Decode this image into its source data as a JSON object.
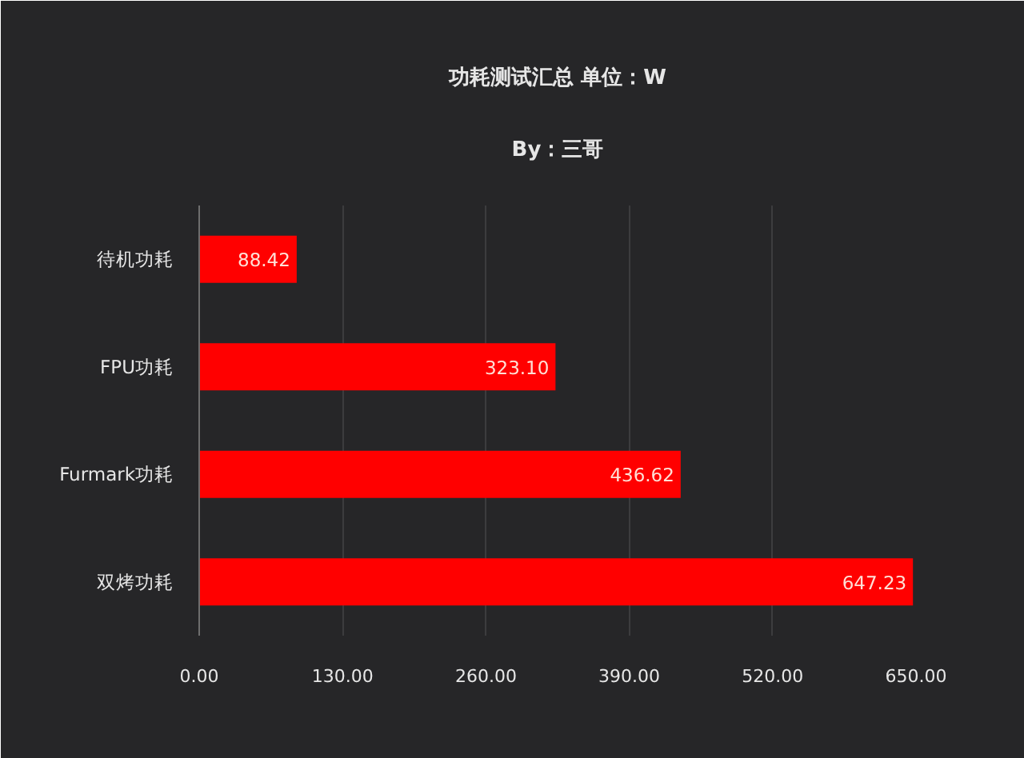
{
  "chart_data": {
    "type": "bar",
    "orientation": "horizontal",
    "title": "功耗测试汇总 单位：W",
    "subtitle": "By：三哥",
    "categories": [
      "待机功耗",
      "FPU功耗",
      "Furmark功耗",
      "双烤功耗"
    ],
    "values": [
      88.42,
      323.1,
      436.62,
      647.23
    ],
    "value_labels": [
      "88.42",
      "323.10",
      "436.62",
      "647.23"
    ],
    "color": "#ff0000",
    "xlim": [
      0,
      650
    ],
    "xticks": [
      {
        "value": 0,
        "label": "0.00"
      },
      {
        "value": 130,
        "label": "130.00"
      },
      {
        "value": 260,
        "label": "260.00"
      },
      {
        "value": 390,
        "label": "390.00"
      },
      {
        "value": 520,
        "label": "520.00"
      },
      {
        "value": 650,
        "label": "650.00"
      }
    ],
    "grid": "x"
  }
}
